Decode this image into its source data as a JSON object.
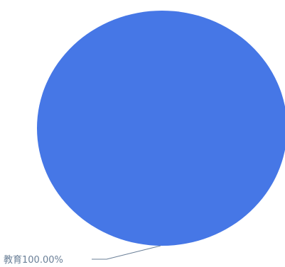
{
  "chart_data": {
    "type": "pie",
    "categories": [
      "教育"
    ],
    "values": [
      100.0
    ],
    "labels": [
      "教育100.00%"
    ],
    "colors": [
      "#4677e6"
    ],
    "label_color": "#6a7f97",
    "leader_color": "#6a7f97",
    "legend": "none"
  }
}
